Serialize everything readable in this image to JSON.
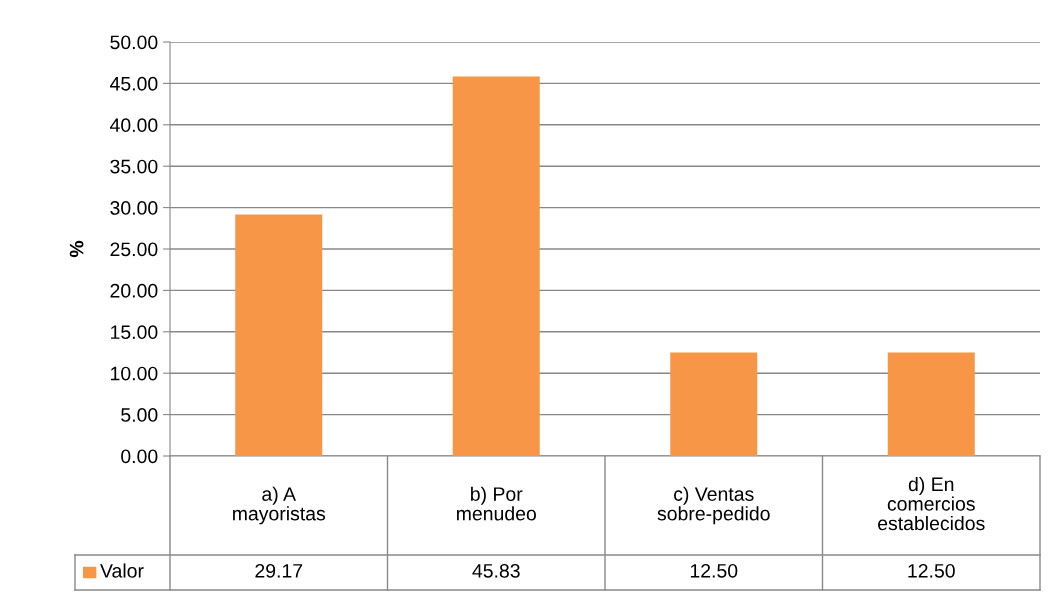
{
  "chart_data": {
    "type": "bar",
    "ylabel": "%",
    "categories": [
      "a) A\nmayoristas",
      "b) Por\nmenudeo",
      "c) Ventas\nsobre-pedido",
      "d) En\ncomercios\nestablecidos"
    ],
    "series": [
      {
        "name": "Valor",
        "color": "#f79646",
        "values": [
          29.17,
          45.83,
          12.5,
          12.5
        ],
        "value_labels": [
          "29.17",
          "45.83",
          "12.50",
          "12.50"
        ]
      }
    ],
    "ylim": [
      0,
      50
    ],
    "yticks": [
      {
        "value": 0,
        "label": "0.00"
      },
      {
        "value": 5,
        "label": "5.00"
      },
      {
        "value": 10,
        "label": "10.00"
      },
      {
        "value": 15,
        "label": "15.00"
      },
      {
        "value": 20,
        "label": "20.00"
      },
      {
        "value": 25,
        "label": "25.00"
      },
      {
        "value": 30,
        "label": "30.00"
      },
      {
        "value": 35,
        "label": "35.00"
      },
      {
        "value": 40,
        "label": "40.00"
      },
      {
        "value": 45,
        "label": "45.00"
      },
      {
        "value": 50,
        "label": "50.00"
      }
    ],
    "grid": "y",
    "legend": "bottom"
  }
}
